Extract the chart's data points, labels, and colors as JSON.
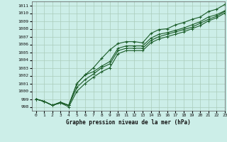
{
  "title": "Graphe pression niveau de la mer (hPa)",
  "bg_color": "#cceee8",
  "grid_color": "#aaccbb",
  "line_color": "#1a5c28",
  "xlim": [
    -0.5,
    23
  ],
  "ylim": [
    997.5,
    1011.5
  ],
  "yticks": [
    998,
    999,
    1000,
    1001,
    1002,
    1003,
    1004,
    1005,
    1006,
    1007,
    1008,
    1009,
    1010,
    1011
  ],
  "xticks": [
    0,
    1,
    2,
    3,
    4,
    5,
    6,
    7,
    8,
    9,
    10,
    11,
    12,
    13,
    14,
    15,
    16,
    17,
    18,
    19,
    20,
    21,
    22,
    23
  ],
  "series": [
    [
      999.0,
      998.7,
      998.2,
      998.6,
      998.2,
      1001.0,
      1002.1,
      1003.0,
      1004.2,
      1005.3,
      1006.1,
      1006.35,
      1006.35,
      1006.2,
      1007.4,
      1007.9,
      1008.0,
      1008.5,
      1008.8,
      1009.2,
      1009.5,
      1010.2,
      1010.5,
      1011.1
    ],
    [
      999.0,
      998.7,
      998.2,
      998.6,
      998.2,
      1001.0,
      1002.1,
      1002.5,
      1003.2,
      1003.8,
      1005.5,
      1005.8,
      1005.8,
      1005.8,
      1006.8,
      1007.3,
      1007.5,
      1007.8,
      1008.1,
      1008.5,
      1008.9,
      1009.5,
      1009.8,
      1010.3
    ],
    [
      999.0,
      998.7,
      998.2,
      998.5,
      998.2,
      1000.5,
      1001.5,
      1002.2,
      1003.0,
      1003.5,
      1005.2,
      1005.5,
      1005.5,
      1005.5,
      1006.5,
      1007.0,
      1007.3,
      1007.6,
      1007.9,
      1008.2,
      1008.7,
      1009.2,
      1009.6,
      1010.2
    ],
    [
      999.0,
      998.7,
      998.2,
      998.5,
      998.0,
      1000.0,
      1001.0,
      1001.8,
      1002.5,
      1003.0,
      1004.8,
      1005.2,
      1005.2,
      1005.2,
      1006.2,
      1006.7,
      1007.0,
      1007.3,
      1007.6,
      1008.0,
      1008.4,
      1009.0,
      1009.4,
      1010.0
    ]
  ]
}
